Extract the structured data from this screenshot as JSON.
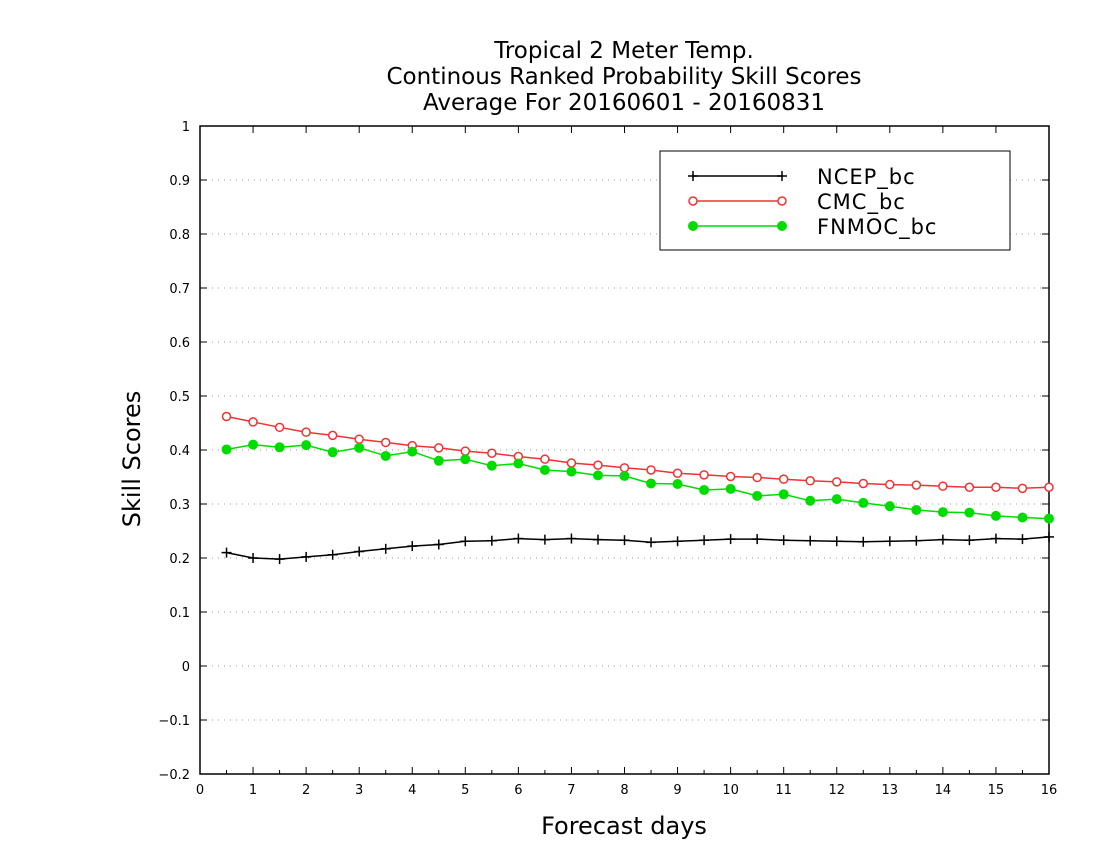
{
  "chart_data": {
    "type": "line",
    "title": [
      "Tropical 2 Meter Temp.",
      "Continous Ranked Probability Skill Scores",
      "Average For 20160601 - 20160831"
    ],
    "xlabel": "Forecast days",
    "ylabel": "Skill Scores",
    "xlim": [
      0,
      16
    ],
    "ylim": [
      -0.2,
      1
    ],
    "xticks": [
      "0",
      "1",
      "2",
      "3",
      "4",
      "5",
      "6",
      "7",
      "8",
      "9",
      "10",
      "11",
      "12",
      "13",
      "14",
      "15",
      "16"
    ],
    "yticks": [
      "−0.2",
      "−0.1",
      "0",
      "0.1",
      "0.2",
      "0.3",
      "0.4",
      "0.5",
      "0.6",
      "0.7",
      "0.8",
      "0.9",
      "1"
    ],
    "grid": "horizontal dotted",
    "legend_position": "top-right",
    "x": [
      0.5,
      1,
      1.5,
      2,
      2.5,
      3,
      3.5,
      4,
      4.5,
      5,
      5.5,
      6,
      6.5,
      7,
      7.5,
      8,
      8.5,
      9,
      9.5,
      10,
      10.5,
      11,
      11.5,
      12,
      12.5,
      13,
      13.5,
      14,
      14.5,
      15,
      15.5,
      16
    ],
    "series": [
      {
        "name": "NCEP_bc",
        "color": "#000000",
        "marker": "plus",
        "values": [
          0.21,
          0.2,
          0.198,
          0.202,
          0.206,
          0.212,
          0.217,
          0.222,
          0.225,
          0.231,
          0.232,
          0.236,
          0.234,
          0.236,
          0.234,
          0.233,
          0.229,
          0.231,
          0.233,
          0.235,
          0.235,
          0.233,
          0.232,
          0.231,
          0.23,
          0.231,
          0.232,
          0.234,
          0.233,
          0.236,
          0.235,
          0.239
        ]
      },
      {
        "name": "CMC_bc",
        "color": "#f03232",
        "marker": "open-circle",
        "values": [
          0.462,
          0.452,
          0.442,
          0.433,
          0.427,
          0.42,
          0.414,
          0.408,
          0.404,
          0.398,
          0.394,
          0.388,
          0.383,
          0.376,
          0.372,
          0.367,
          0.363,
          0.357,
          0.354,
          0.351,
          0.349,
          0.346,
          0.343,
          0.341,
          0.338,
          0.336,
          0.335,
          0.333,
          0.331,
          0.331,
          0.329,
          0.331
        ]
      },
      {
        "name": "FNMOC_bc",
        "color": "#00dc00",
        "marker": "filled-circle",
        "values": [
          0.401,
          0.41,
          0.405,
          0.409,
          0.396,
          0.404,
          0.389,
          0.397,
          0.38,
          0.383,
          0.371,
          0.375,
          0.363,
          0.36,
          0.353,
          0.352,
          0.338,
          0.337,
          0.326,
          0.328,
          0.315,
          0.318,
          0.306,
          0.309,
          0.302,
          0.296,
          0.289,
          0.285,
          0.284,
          0.278,
          0.275,
          0.273
        ]
      }
    ]
  }
}
